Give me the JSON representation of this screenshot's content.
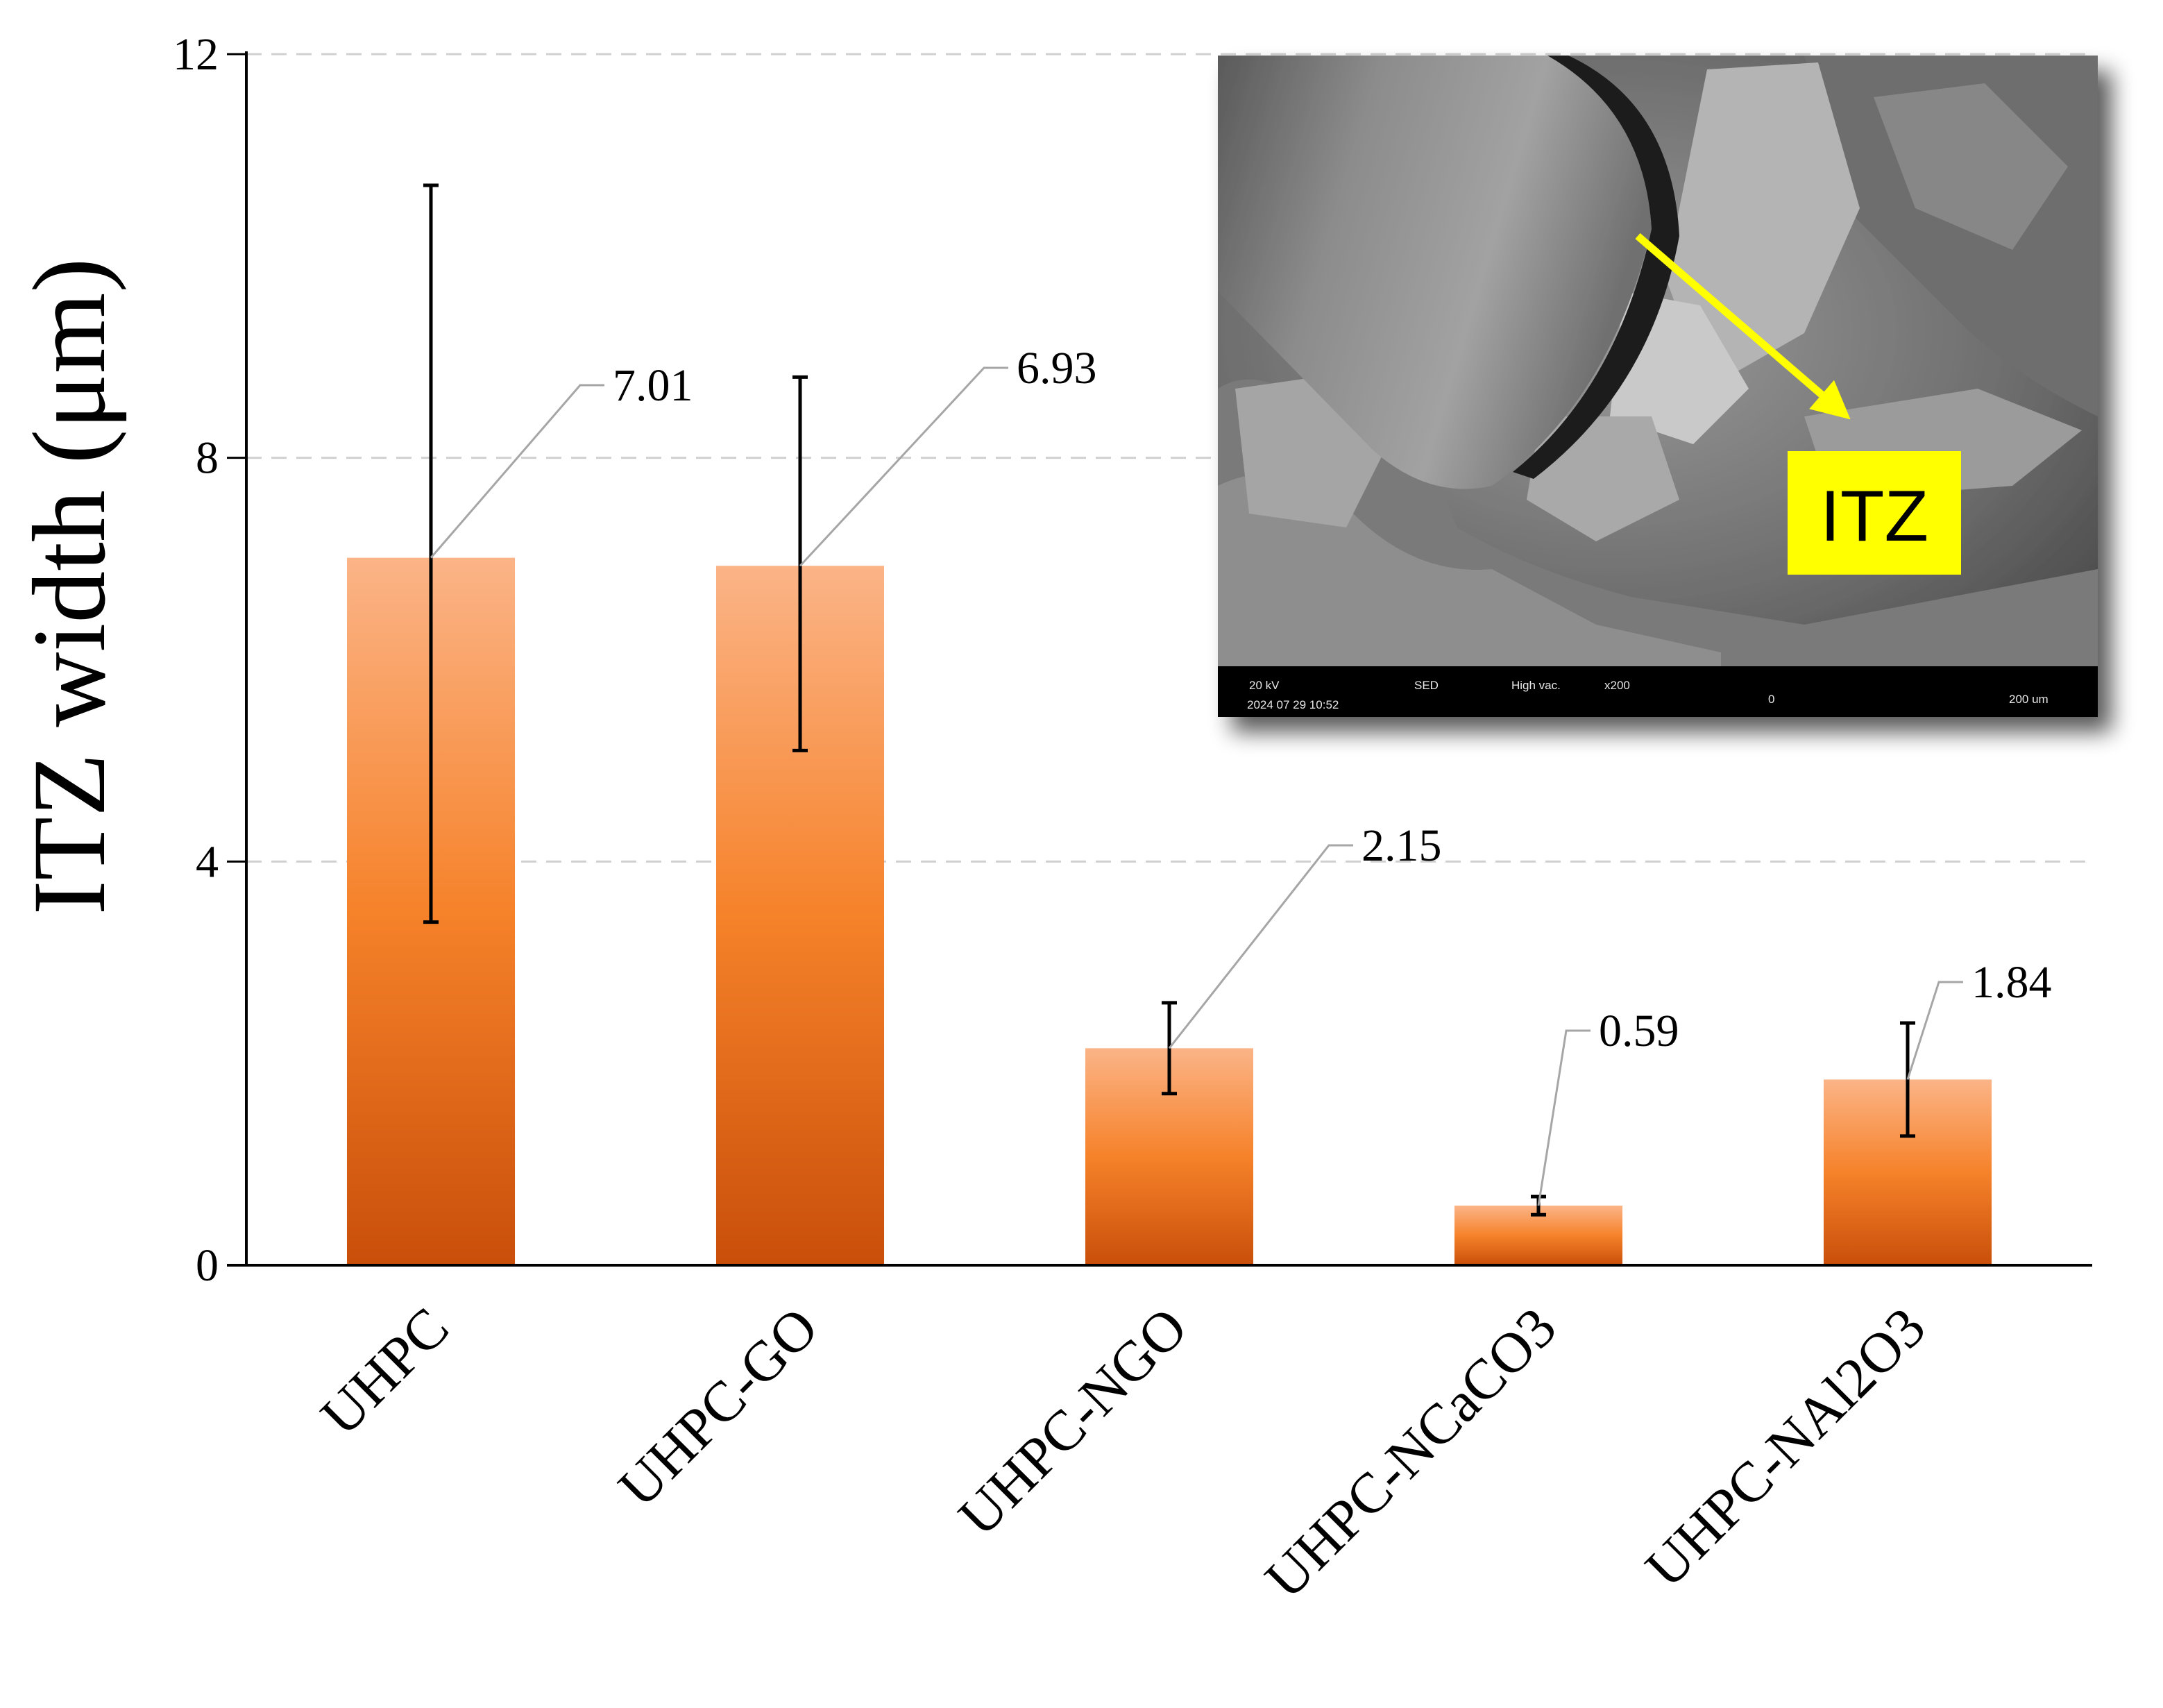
{
  "chart_data": {
    "type": "bar",
    "categories": [
      "UHPC",
      "UHPC-GO",
      "UHPC-NGO",
      "UHPC-NCaCO3",
      "UHPC-NAl2O3"
    ],
    "values": [
      7.01,
      6.93,
      2.15,
      0.59,
      1.84
    ],
    "data_labels": [
      "7.01",
      "6.93",
      "2.15",
      "0.59",
      "1.84"
    ],
    "error_bars": {
      "upper": [
        10.7,
        8.8,
        2.6,
        0.68,
        2.4
      ],
      "lower": [
        3.4,
        5.1,
        1.7,
        0.5,
        1.28
      ]
    },
    "ylabel": "ITZ width (μm)",
    "xlabel": "",
    "ylim": [
      0,
      12
    ],
    "yticks": [
      0,
      4,
      8,
      12
    ],
    "ytick_labels": [
      "0",
      "4",
      "8",
      "12"
    ],
    "grid": true,
    "colors": {
      "bar_top": "#fbb487",
      "bar_mid": "#f6822a",
      "bar_bottom": "#c94f0a",
      "error_bar": "#000000",
      "leader": "#a6a6a6",
      "grid": "#d0d0d0"
    },
    "inset": {
      "label": "ITZ",
      "label_color": "#ffff00",
      "arrow_color": "#ffff00",
      "info_bar": {
        "voltage": "20 kV",
        "mode": "SED",
        "vacuum": "High vac.",
        "magnification": "x200",
        "timestamp": "2024 07 29 10:52",
        "scale_zero": "0",
        "scale_max": "200 um"
      }
    }
  }
}
